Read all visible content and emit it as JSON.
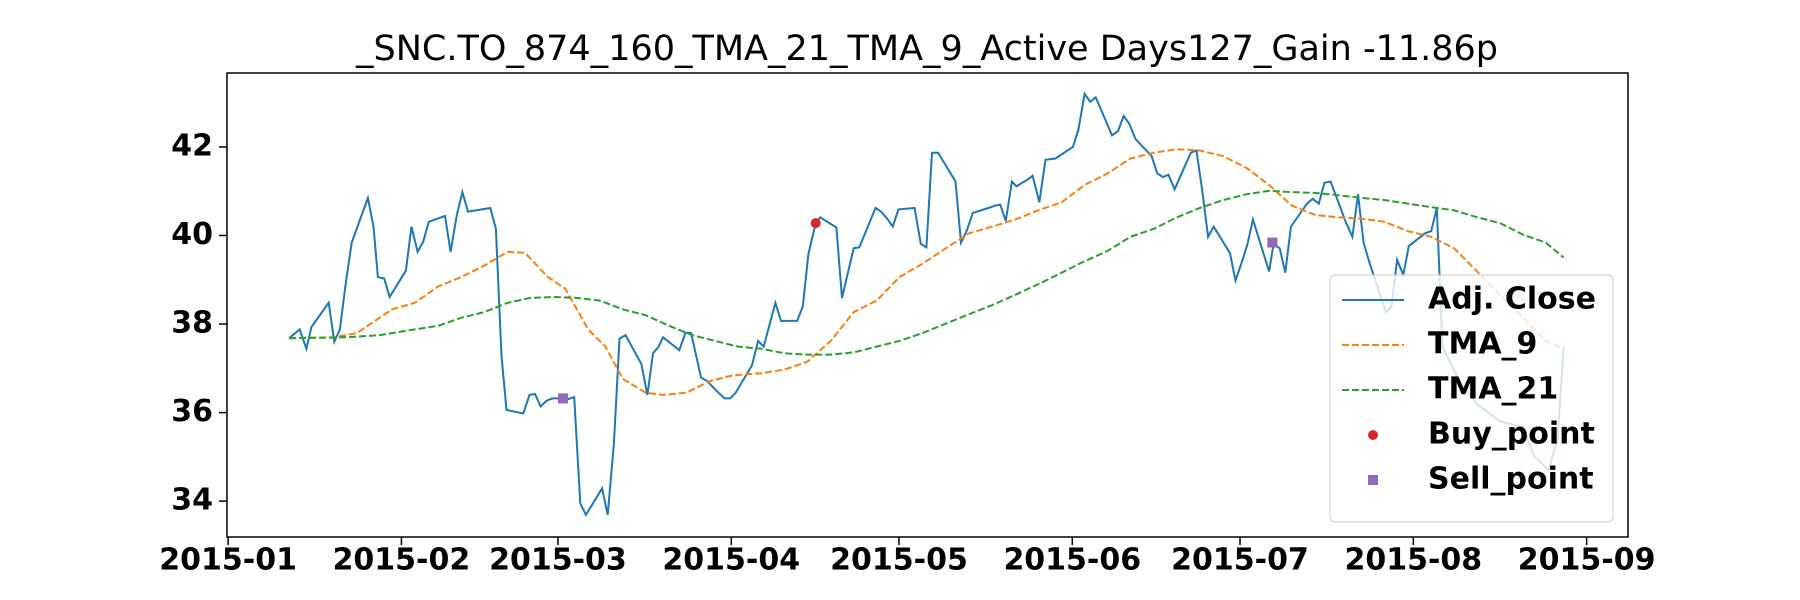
{
  "chart_data": {
    "type": "line",
    "title": "_SNC.TO_874_160_TMA_21_TMA_9_Active Days127_Gain -11.86p",
    "xlim": [
      -0.2,
      250.4
    ],
    "ylim": [
      33.19,
      43.67
    ],
    "xticks": [
      {
        "value": 0,
        "label": "2015-01"
      },
      {
        "value": 31,
        "label": "2015-02"
      },
      {
        "value": 59,
        "label": "2015-03"
      },
      {
        "value": 90,
        "label": "2015-04"
      },
      {
        "value": 120,
        "label": "2015-05"
      },
      {
        "value": 151,
        "label": "2015-06"
      },
      {
        "value": 181,
        "label": "2015-07"
      },
      {
        "value": 212,
        "label": "2015-08"
      },
      {
        "value": 243,
        "label": "2015-09"
      }
    ],
    "yticks": [
      34,
      36,
      38,
      40,
      42
    ],
    "legend": "lower right",
    "series": [
      {
        "name": "Adj. Close",
        "color": "#1f77b4",
        "style": "solid",
        "x": [
          10.9,
          12.8,
          14.0,
          14.9,
          18.0,
          19.0,
          20.0,
          21.1,
          22.1,
          25.0,
          26.0,
          26.8,
          27.9,
          28.9,
          31.8,
          32.8,
          33.9,
          34.9,
          35.9,
          38.8,
          39.8,
          40.9,
          41.9,
          42.9,
          46.9,
          47.9,
          48.9,
          49.8,
          52.8,
          53.9,
          54.9,
          55.9,
          57.0,
          58.0,
          59.9,
          60.7,
          61.9,
          63.0,
          64.0,
          66.9,
          67.9,
          69.0,
          70.0,
          71.1,
          73.9,
          75.0,
          76.0,
          77.0,
          77.8,
          80.7,
          81.8,
          82.8,
          84.6,
          85.7,
          87.7,
          88.8,
          89.8,
          90.8,
          93.7,
          94.8,
          95.8,
          97.9,
          98.9,
          101.8,
          102.8,
          103.8,
          105.1,
          105.9,
          108.8,
          109.8,
          111.9,
          112.9,
          115.8,
          116.8,
          117.9,
          118.9,
          119.9,
          122.8,
          123.9,
          124.9,
          125.9,
          127.0,
          130.1,
          131.1,
          132.1,
          133.2,
          136.0,
          137.1,
          138.1,
          139.1,
          140.2,
          141.0,
          143.1,
          143.9,
          145.1,
          146.2,
          148.0,
          151.1,
          152.1,
          153.2,
          154.2,
          155.2,
          158.1,
          159.2,
          160.2,
          161.2,
          162.3,
          165.2,
          166.2,
          167.2,
          168.2,
          169.3,
          172.2,
          173.2,
          174.2,
          175.3,
          176.3,
          179.2,
          180.2,
          181.3,
          182.3,
          183.3,
          186.2,
          187.0,
          188.1,
          189.1,
          190.1,
          193.0,
          194.0,
          195.1,
          196.1,
          197.2,
          200.0,
          201.1,
          202.1,
          203.1,
          204.2,
          207.1,
          208.1,
          209.1,
          210.2,
          211.2,
          214.1,
          215.2,
          216.2,
          217.2,
          220.3,
          223.4,
          227.5,
          231.6,
          233.6,
          236.2,
          237.8,
          238.9
        ],
        "values": [
          37.68,
          37.88,
          37.44,
          37.93,
          38.48,
          37.6,
          37.88,
          38.98,
          39.84,
          40.85,
          40.2,
          39.06,
          39.03,
          38.61,
          39.21,
          40.2,
          39.63,
          39.86,
          40.31,
          40.44,
          39.63,
          40.46,
          40.98,
          40.54,
          40.62,
          40.15,
          37.28,
          36.06,
          35.98,
          36.4,
          36.42,
          36.14,
          36.27,
          36.32,
          36.32,
          36.3,
          36.35,
          33.95,
          33.69,
          34.29,
          33.69,
          35.3,
          37.67,
          37.75,
          37.1,
          36.4,
          37.34,
          37.49,
          37.7,
          37.41,
          37.8,
          37.8,
          36.79,
          36.71,
          36.45,
          36.32,
          36.32,
          36.45,
          37.07,
          37.62,
          37.49,
          38.48,
          38.07,
          38.07,
          38.4,
          39.58,
          40.28,
          40.41,
          40.18,
          38.59,
          39.71,
          39.73,
          40.62,
          40.54,
          40.38,
          40.2,
          40.59,
          40.62,
          39.81,
          39.73,
          41.87,
          41.87,
          41.22,
          39.84,
          40.1,
          40.51,
          40.62,
          40.67,
          40.7,
          40.33,
          41.22,
          41.11,
          41.27,
          41.35,
          40.75,
          41.71,
          41.74,
          42.0,
          42.39,
          43.2,
          43.02,
          43.12,
          42.26,
          42.36,
          42.7,
          42.52,
          42.18,
          41.79,
          41.4,
          41.32,
          41.37,
          41.04,
          41.87,
          41.92,
          41.06,
          39.97,
          40.2,
          39.6,
          38.98,
          39.39,
          39.79,
          40.36,
          39.19,
          39.81,
          39.71,
          39.16,
          40.2,
          40.72,
          40.83,
          40.72,
          41.19,
          41.22,
          40.28,
          39.97,
          40.93,
          39.84,
          39.37,
          38.27,
          38.4,
          39.45,
          39.11,
          39.76,
          40.05,
          40.1,
          40.62,
          37.49,
          36.7,
          36.19,
          35.8,
          35.67,
          35.02,
          34.7,
          35.41,
          37.49
        ]
      },
      {
        "name": "TMA_9",
        "color": "#ff7f0e",
        "style": "dashed",
        "x": [
          10.9,
          19.0,
          23.1,
          29.3,
          33.4,
          37.6,
          41.7,
          45.8,
          50.0,
          53.1,
          57.2,
          60.3,
          64.4,
          67.5,
          70.6,
          74.7,
          77.8,
          82.0,
          86.1,
          90.2,
          95.4,
          99.5,
          103.6,
          107.8,
          111.9,
          116.0,
          120.1,
          124.3,
          128.4,
          132.5,
          136.7,
          140.8,
          144.9,
          149.1,
          153.2,
          157.3,
          161.4,
          165.6,
          169.7,
          173.8,
          178.0,
          182.1,
          186.2,
          190.3,
          194.5,
          198.6,
          202.7,
          206.9,
          211.0,
          215.2,
          219.3,
          223.4,
          227.5,
          231.6,
          235.7,
          238.9
        ],
        "values": [
          37.68,
          37.7,
          37.8,
          38.33,
          38.48,
          38.85,
          39.06,
          39.32,
          39.63,
          39.61,
          39.06,
          38.8,
          37.88,
          37.49,
          36.76,
          36.45,
          36.4,
          36.45,
          36.71,
          36.84,
          36.89,
          36.97,
          37.15,
          37.62,
          38.27,
          38.53,
          39.06,
          39.37,
          39.71,
          40.05,
          40.2,
          40.36,
          40.57,
          40.75,
          41.14,
          41.4,
          41.74,
          41.87,
          41.95,
          41.92,
          41.79,
          41.53,
          41.14,
          40.67,
          40.46,
          40.41,
          40.38,
          40.31,
          40.1,
          39.97,
          39.71,
          39.19,
          38.66,
          38.14,
          37.62,
          37.44
        ]
      },
      {
        "name": "TMA_21",
        "color": "#2ca02c",
        "style": "dashed",
        "x": [
          10.9,
          21.1,
          27.2,
          33.4,
          37.6,
          41.7,
          45.8,
          50.0,
          54.1,
          58.2,
          62.3,
          66.5,
          70.6,
          74.7,
          78.9,
          83.0,
          87.1,
          91.2,
          95.4,
          99.5,
          103.6,
          107.8,
          111.9,
          116.0,
          120.1,
          124.3,
          128.4,
          132.5,
          136.7,
          140.8,
          144.9,
          149.1,
          153.2,
          157.3,
          161.4,
          165.6,
          169.7,
          173.8,
          178.0,
          182.1,
          186.2,
          190.3,
          194.5,
          198.6,
          202.7,
          206.9,
          211.0,
          215.2,
          219.3,
          223.4,
          227.5,
          231.6,
          235.7,
          238.9
        ],
        "values": [
          37.68,
          37.7,
          37.75,
          37.88,
          37.96,
          38.14,
          38.27,
          38.48,
          38.59,
          38.61,
          38.59,
          38.53,
          38.33,
          38.2,
          37.96,
          37.75,
          37.62,
          37.49,
          37.44,
          37.34,
          37.31,
          37.31,
          37.36,
          37.49,
          37.62,
          37.8,
          38.01,
          38.22,
          38.43,
          38.66,
          38.9,
          39.16,
          39.42,
          39.65,
          39.97,
          40.15,
          40.41,
          40.62,
          40.8,
          40.93,
          41.01,
          40.98,
          40.96,
          40.91,
          40.85,
          40.8,
          40.72,
          40.64,
          40.57,
          40.41,
          40.28,
          40.02,
          39.84,
          39.5
        ]
      },
      {
        "name": "Buy_point",
        "color": "#d62728",
        "marker": "circle",
        "x": [
          105.1
        ],
        "values": [
          40.28
        ]
      },
      {
        "name": "Sell_point",
        "color": "#9467bd",
        "marker": "square",
        "x": [
          59.9,
          186.8
        ],
        "values": [
          36.32,
          39.84
        ]
      }
    ]
  }
}
